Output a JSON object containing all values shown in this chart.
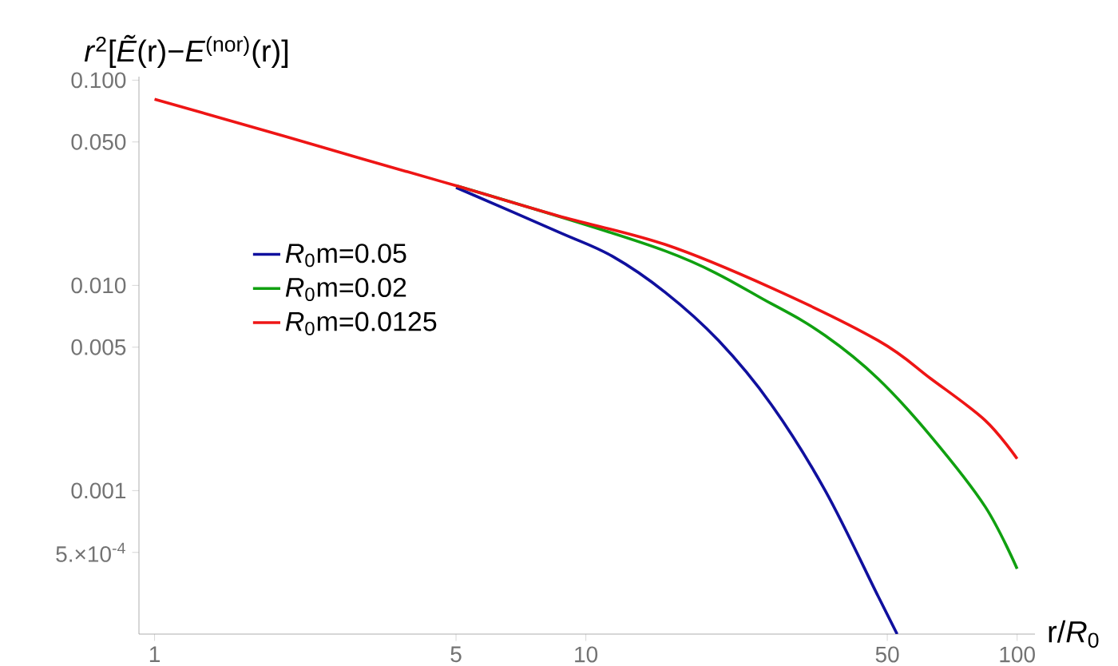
{
  "chart_data": {
    "type": "line",
    "xlabel": "r/*R*$_{0}$",
    "ylabel": "*r*$^{2}$[*Ẽ*(r)−*E*$^{(nor)}$(r)]",
    "log": "xy",
    "xlim": [
      0.92,
      110
    ],
    "ylim": [
      0.0002,
      0.104
    ],
    "xticks": [
      1,
      5,
      10,
      50,
      100
    ],
    "yticks": [
      {
        "value": 0.1,
        "label": "0.100"
      },
      {
        "value": 0.05,
        "label": "0.050"
      },
      {
        "value": 0.01,
        "label": "0.010"
      },
      0.005,
      0.001,
      {
        "value": 0.0005,
        "label": "5.×10$^{-4}$"
      }
    ],
    "legend": "left",
    "grid": false,
    "marker": "none",
    "line_style": "solid",
    "series": [
      {
        "name": "*R*$_{0}$m=0.05",
        "color": "#10109e",
        "x": [
          5,
          8.65,
          11.5,
          15.3,
          20.3,
          26.9,
          35.9,
          47.6,
          52.7
        ],
        "values": [
          0.03,
          0.0182,
          0.0139,
          0.00923,
          0.00539,
          0.00263,
          0.001,
          0.000306,
          0.0002
        ]
      },
      {
        "name": "*R*$_{0}$m=0.02",
        "color": "#10a010",
        "x": [
          5,
          15.3,
          26.9,
          35.9,
          47.6,
          63.1,
          84.3,
          100
        ],
        "values": [
          0.0306,
          0.0147,
          0.00815,
          0.00569,
          0.00351,
          0.00184,
          0.000836,
          0.000416
        ]
      },
      {
        "name": "*R*$_{0}$m=0.0125",
        "color": "#ee1515",
        "x": [
          1,
          2,
          3,
          5,
          8.65,
          15.3,
          26.9,
          47.6,
          63.1,
          84.3,
          100
        ],
        "values": [
          0.0807,
          0.0534,
          0.0416,
          0.0306,
          0.0218,
          0.0158,
          0.00973,
          0.00539,
          0.00351,
          0.0022,
          0.00143
        ]
      }
    ]
  }
}
